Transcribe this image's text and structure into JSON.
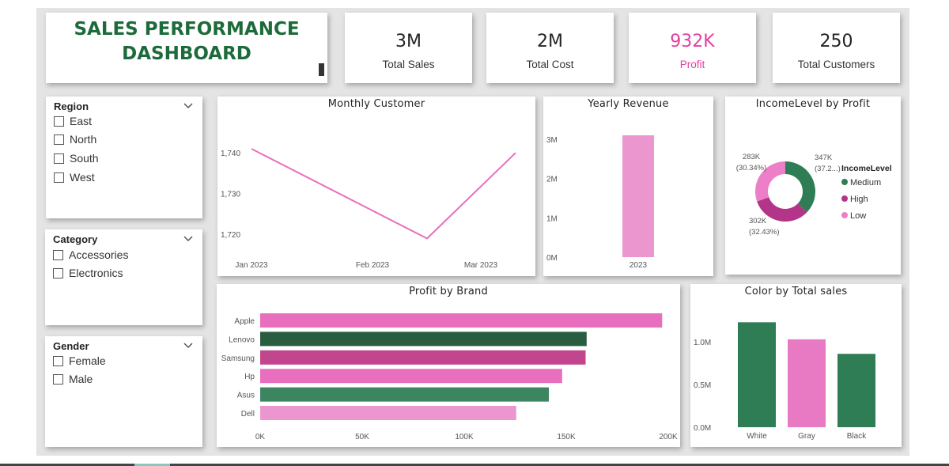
{
  "title": {
    "line1": "SALES PERFORMANCE",
    "line2": "DASHBOARD"
  },
  "kpis": [
    {
      "value": "3M",
      "label": "Total Sales",
      "color": "#252423"
    },
    {
      "value": "2M",
      "label": "Total Cost",
      "color": "#252423"
    },
    {
      "value": "932K",
      "label": "Profit",
      "color": "#e040a0"
    },
    {
      "value": "250",
      "label": "Total Customers",
      "color": "#252423"
    }
  ],
  "slicers": {
    "region": {
      "title": "Region",
      "items": [
        "East",
        "North",
        "South",
        "West"
      ]
    },
    "category": {
      "title": "Category",
      "items": [
        "Accessories",
        "Electronics"
      ]
    },
    "gender": {
      "title": "Gender",
      "items": [
        "Female",
        "Male"
      ]
    }
  },
  "colors": {
    "accent_green": "#1d6b3a",
    "pink": "#e86fbd",
    "light_pink": "#ec96cf",
    "dark_green": "#2a5c42",
    "green": "#2e7d55",
    "magenta": "#c2468e",
    "mid_green": "#3d8460"
  },
  "chart_data": [
    {
      "id": "monthly_customer",
      "type": "line",
      "title": "Monthly Customer",
      "x": [
        "Jan 2023",
        "Feb 2023",
        "Mar 2023"
      ],
      "series": [
        {
          "values": [
            1741,
            1719,
            1740
          ],
          "color": "#e86fbd"
        }
      ],
      "yticks": [
        "1,720",
        "1,730",
        "1,740"
      ],
      "ylim": [
        1715,
        1748
      ],
      "grid": false
    },
    {
      "id": "yearly_revenue",
      "type": "bar",
      "title": "Yearly Revenue",
      "categories": [
        "2023"
      ],
      "values": [
        3100000
      ],
      "yticks": [
        "0M",
        "1M",
        "2M",
        "3M"
      ],
      "ylim": [
        0,
        3000000
      ],
      "color": "#ec96cf"
    },
    {
      "id": "income_level_by_profit",
      "type": "pie",
      "subtype": "donut",
      "title": "IncomeLevel by Profit",
      "legend_title": "IncomeLevel",
      "legend_position": "right",
      "slices": [
        {
          "label": "Medium",
          "value": 347,
          "display": "347K",
          "pct": "(37.2...)",
          "color": "#2e7d55"
        },
        {
          "label": "High",
          "value": 302,
          "display": "302K",
          "pct": "(32.43%)",
          "color": "#b3358a"
        },
        {
          "label": "Low",
          "value": 283,
          "display": "283K",
          "pct": "(30.34%)",
          "color": "#ec7fc8"
        }
      ]
    },
    {
      "id": "profit_by_brand",
      "type": "bar",
      "orientation": "horizontal",
      "title": "Profit by Brand",
      "categories": [
        "Apple",
        "Lenovo",
        "Samsung",
        "Hp",
        "Asus",
        "Dell"
      ],
      "values": [
        197000,
        160000,
        159500,
        148000,
        141500,
        125500
      ],
      "colors": [
        "#e86fbd",
        "#2a5c42",
        "#c2468e",
        "#e86fbd",
        "#3d8460",
        "#ec96cf"
      ],
      "xticks": [
        "0K",
        "50K",
        "100K",
        "150K",
        "200K"
      ],
      "xlim": [
        0,
        200000
      ]
    },
    {
      "id": "color_by_total_sales",
      "type": "bar",
      "title": "Color by Total sales",
      "categories": [
        "White",
        "Gray",
        "Black"
      ],
      "values": [
        1230000,
        1030000,
        860000
      ],
      "colors": [
        "#2e7d55",
        "#e879c3",
        "#2e7d55"
      ],
      "yticks": [
        "0.0M",
        "0.5M",
        "1.0M"
      ],
      "ylim": [
        0,
        1400000
      ]
    }
  ]
}
